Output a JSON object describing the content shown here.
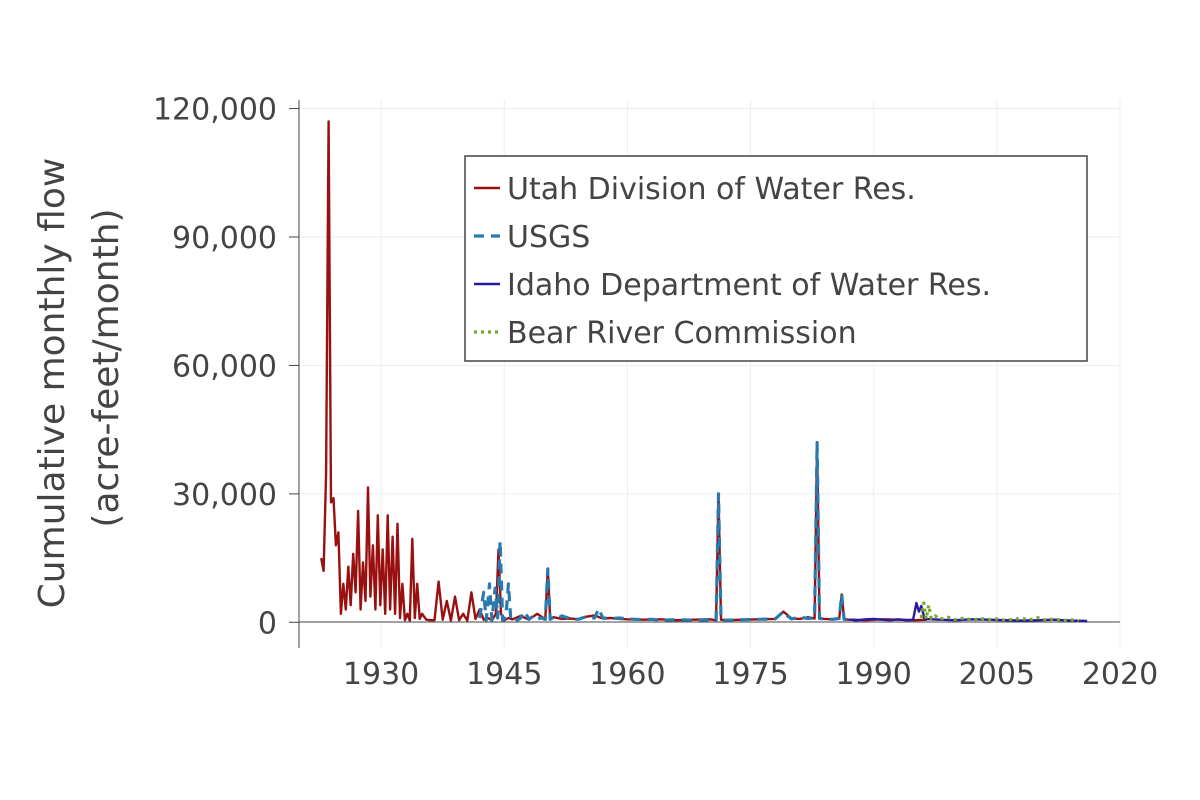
{
  "chart_data": {
    "type": "line",
    "title": "",
    "xlabel": "",
    "ylabel_line1": "Cumulative monthly flow",
    "ylabel_line2": "(acre-feet/month)",
    "xlim": [
      1920,
      2020
    ],
    "ylim": [
      -6000,
      122000
    ],
    "x_ticks": [
      1930,
      1945,
      1960,
      1975,
      1990,
      2005,
      2020
    ],
    "y_ticks": [
      0,
      30000,
      60000,
      90000,
      120000
    ],
    "y_tick_labels": [
      "0",
      "30,000",
      "60,000",
      "90,000",
      "120,000"
    ],
    "grid": true,
    "legend_position": "top-right",
    "series": [
      {
        "name": "Utah Division of Water Res.",
        "color": "#9a1010",
        "dash": "solid",
        "x": [
          1922.7,
          1923.0,
          1923.3,
          1923.6,
          1923.9,
          1924.2,
          1924.5,
          1924.8,
          1925.1,
          1925.4,
          1925.7,
          1926.0,
          1926.3,
          1926.6,
          1926.9,
          1927.2,
          1927.5,
          1927.8,
          1928.1,
          1928.4,
          1928.7,
          1929.0,
          1929.3,
          1929.6,
          1929.9,
          1930.2,
          1930.5,
          1930.8,
          1931.1,
          1931.4,
          1931.7,
          1932.0,
          1932.3,
          1932.6,
          1932.9,
          1933.2,
          1933.5,
          1933.8,
          1934.1,
          1934.4,
          1934.7,
          1935.0,
          1935.5,
          1936.0,
          1936.5,
          1937.0,
          1937.5,
          1938.0,
          1938.5,
          1939.0,
          1939.5,
          1940.0,
          1940.5,
          1941.0,
          1941.5,
          1942.0,
          1942.5,
          1943.0,
          1943.5,
          1944.0,
          1944.3,
          1944.6,
          1945.0,
          1945.5,
          1946.0,
          1947.0,
          1948.0,
          1949.0,
          1950.0,
          1950.3,
          1950.6,
          1951.0,
          1952.0,
          1953.0,
          1954.0,
          1955.0,
          1956.0,
          1957.0,
          1958.0,
          1959.0,
          1960.0,
          1962.0,
          1964.0,
          1966.0,
          1968.0,
          1970.0,
          1970.8,
          1971.1,
          1971.4,
          1972.0,
          1974.0,
          1976.0,
          1978.0,
          1979.0,
          1980.0,
          1981.0,
          1982.0,
          1982.8,
          1983.1,
          1983.4,
          1984.0,
          1985.0,
          1985.8,
          1986.1,
          1986.4,
          1987.0,
          1989.0,
          1991.0,
          1993.0,
          1995.0,
          1996.5
        ],
        "y": [
          15000,
          12000,
          35000,
          117000,
          28000,
          29000,
          18000,
          21000,
          2000,
          9000,
          3000,
          13000,
          4000,
          16000,
          7000,
          26000,
          3000,
          14000,
          5000,
          31500,
          6000,
          18000,
          3000,
          25000,
          4000,
          17000,
          2000,
          25000,
          3000,
          20000,
          2000,
          23000,
          1000,
          9000,
          500,
          2000,
          400,
          19500,
          1000,
          9000,
          800,
          2000,
          600,
          500,
          500,
          9500,
          600,
          5000,
          400,
          6000,
          500,
          2000,
          400,
          7000,
          800,
          3000,
          600,
          1000,
          500,
          2000,
          17000,
          2000,
          500,
          1000,
          700,
          1500,
          600,
          2000,
          700,
          12500,
          700,
          1200,
          800,
          900,
          700,
          1300,
          1600,
          900,
          1000,
          800,
          700,
          600,
          700,
          500,
          600,
          700,
          500,
          30000,
          600,
          500,
          600,
          700,
          800,
          2500,
          900,
          800,
          1200,
          900,
          42000,
          900,
          800,
          700,
          900,
          6500,
          700,
          600,
          500,
          700,
          600,
          500,
          600
        ]
      },
      {
        "name": "USGS",
        "color": "#2a7ab0",
        "dash": "dashed",
        "x": [
          1942.0,
          1942.5,
          1942.8,
          1943.2,
          1943.5,
          1943.9,
          1944.2,
          1944.5,
          1944.8,
          1945.2,
          1945.5,
          1945.8,
          1946.2,
          1946.6,
          1947.0,
          1947.5,
          1948.0,
          1948.5,
          1949.0,
          1949.5,
          1950.0,
          1950.3,
          1950.6,
          1951.0,
          1951.5,
          1952.0,
          1953.0,
          1954.0,
          1955.0,
          1956.0,
          1956.5,
          1957.0,
          1958.0,
          1959.0,
          1960.0,
          1961.0,
          1962.0,
          1963.0,
          1964.0,
          1966.0,
          1968.0,
          1970.0,
          1970.8,
          1971.1,
          1971.4,
          1972.0,
          1974.0,
          1976.0,
          1978.0,
          1979.0,
          1979.5,
          1980.0,
          1981.0,
          1982.0,
          1982.8,
          1983.1,
          1983.4,
          1984.0,
          1985.0,
          1985.8,
          1986.1,
          1986.4,
          1987.0,
          1988.0
        ],
        "y": [
          1000,
          7000,
          500,
          9000,
          500,
          8000,
          1000,
          19000,
          500,
          1200,
          9000,
          600,
          1000,
          500,
          1000,
          2500,
          700,
          1500,
          800,
          1000,
          700,
          12500,
          700,
          1200,
          900,
          1500,
          900,
          700,
          1300,
          1000,
          3200,
          1000,
          900,
          1000,
          800,
          700,
          600,
          700,
          500,
          600,
          500,
          600,
          500,
          30000,
          600,
          500,
          600,
          700,
          800,
          2500,
          1500,
          800,
          1200,
          900,
          1000,
          42000,
          900,
          800,
          700,
          900,
          6500,
          700,
          600,
          500
        ]
      },
      {
        "name": "Idaho Department of Water Res.",
        "color": "#2a1aa0",
        "dash": "solid",
        "x": [
          1987.0,
          1988.0,
          1989.0,
          1990.0,
          1991.0,
          1992.0,
          1993.0,
          1994.0,
          1994.8,
          1995.2,
          1995.5,
          1995.8,
          1996.2,
          1997.0,
          1998.0,
          2000.0,
          2002.0,
          2004.0,
          2006.0,
          2008.0,
          2010.0,
          2012.0,
          2014.0,
          2016.0
        ],
        "y": [
          600,
          500,
          700,
          800,
          600,
          500,
          700,
          500,
          600,
          4500,
          2500,
          3800,
          800,
          700,
          600,
          500,
          700,
          600,
          500,
          400,
          500,
          600,
          400,
          300
        ]
      },
      {
        "name": "Bear River Commission",
        "color": "#78a82a",
        "dash": "dotted",
        "x": [
          1995.8,
          1996.1,
          1996.4,
          1996.7,
          1997.0,
          1997.5,
          1998.0,
          1999.0,
          2000.0,
          2001.0,
          2002.0,
          2003.0,
          2004.0,
          2005.0,
          2006.0,
          2007.0,
          2008.0,
          2009.0,
          2010.0,
          2011.0,
          2012.0,
          2013.0,
          2014.0,
          2015.0
        ],
        "y": [
          1000,
          4500,
          800,
          4000,
          900,
          1500,
          700,
          1200,
          600,
          1000,
          500,
          900,
          600,
          800,
          500,
          700,
          900,
          600,
          1100,
          500,
          800,
          400,
          600,
          300
        ]
      }
    ]
  }
}
